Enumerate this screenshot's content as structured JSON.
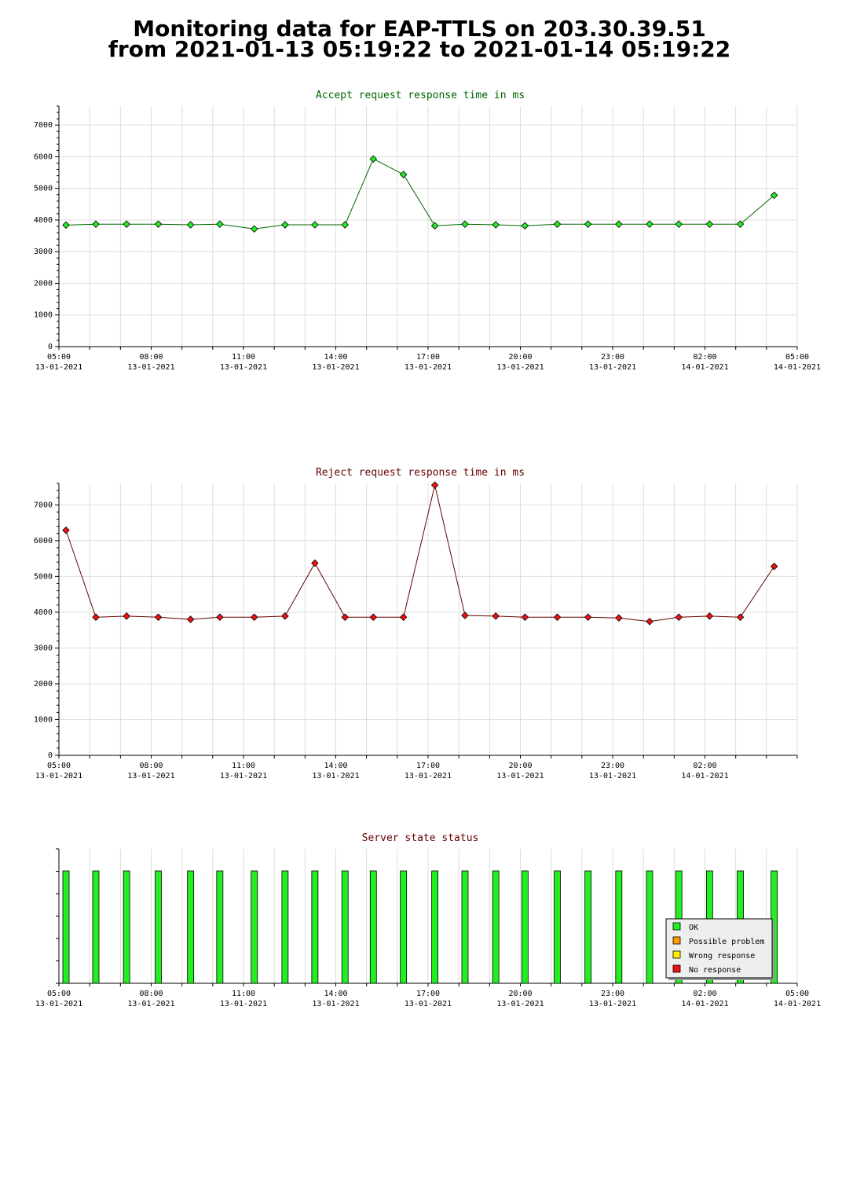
{
  "page": {
    "title_line1": "Monitoring data for EAP-TTLS on 203.30.39.51",
    "title_line2": "from 2021-01-13 05:19:22 to 2021-01-14 05:19:22"
  },
  "colors": {
    "accept_title": "#006600",
    "reject_title": "#660000",
    "state_title": "#660000",
    "accept_line": "#006600",
    "accept_marker": "#22ee22",
    "reject_line": "#660000",
    "reject_marker": "#ee1111",
    "ok": "#22ee22",
    "possible_problem": "#ff9900",
    "wrong_response": "#ffee00",
    "no_response": "#ee1111",
    "grid": "#dddddd"
  },
  "chart_data": [
    {
      "id": "accept",
      "type": "line",
      "title": "Accept request response time in ms",
      "ylim": [
        0,
        7600
      ],
      "yticks": [
        0,
        1000,
        2000,
        3000,
        4000,
        5000,
        6000,
        7000
      ],
      "xlim_hours": [
        5.0,
        29.0
      ],
      "xtick_labels": [
        {
          "time": "05:00",
          "date": "13-01-2021"
        },
        {
          "time": "08:00",
          "date": "13-01-2021"
        },
        {
          "time": "11:00",
          "date": "13-01-2021"
        },
        {
          "time": "14:00",
          "date": "13-01-2021"
        },
        {
          "time": "17:00",
          "date": "13-01-2021"
        },
        {
          "time": "20:00",
          "date": "13-01-2021"
        },
        {
          "time": "23:00",
          "date": "13-01-2021"
        },
        {
          "time": "02:00",
          "date": "14-01-2021"
        },
        {
          "time": "05:00",
          "date": "14-01-2021"
        }
      ],
      "grid": true,
      "series": [
        {
          "x_hours": [
            5.23,
            6.2,
            7.2,
            8.23,
            9.28,
            10.23,
            11.35,
            12.35,
            13.32,
            14.3,
            15.22,
            16.2,
            17.22,
            18.2,
            19.2,
            20.15,
            21.2,
            22.2,
            23.2,
            24.2,
            25.15,
            26.15,
            27.15,
            28.25
          ],
          "values": [
            3840,
            3870,
            3870,
            3870,
            3850,
            3870,
            3720,
            3850,
            3850,
            3850,
            5930,
            5440,
            3820,
            3870,
            3850,
            3820,
            3870,
            3870,
            3870,
            3870,
            3870,
            3870,
            3870,
            4780
          ]
        }
      ]
    },
    {
      "id": "reject",
      "type": "line",
      "title": "Reject request response time in ms",
      "ylim": [
        0,
        7600
      ],
      "yticks": [
        0,
        1000,
        2000,
        3000,
        4000,
        5000,
        6000,
        7000
      ],
      "xlim_hours": [
        5.0,
        29.0
      ],
      "xtick_labels": [
        {
          "time": "05:00",
          "date": "13-01-2021"
        },
        {
          "time": "08:00",
          "date": "13-01-2021"
        },
        {
          "time": "11:00",
          "date": "13-01-2021"
        },
        {
          "time": "14:00",
          "date": "13-01-2021"
        },
        {
          "time": "17:00",
          "date": "13-01-2021"
        },
        {
          "time": "20:00",
          "date": "13-01-2021"
        },
        {
          "time": "23:00",
          "date": "13-01-2021"
        },
        {
          "time": "02:00",
          "date": "14-01-2021"
        }
      ],
      "grid": true,
      "series": [
        {
          "x_hours": [
            5.23,
            6.2,
            7.2,
            8.23,
            9.28,
            10.23,
            11.35,
            12.35,
            13.32,
            14.3,
            15.22,
            16.2,
            17.22,
            18.2,
            19.2,
            20.15,
            21.2,
            22.2,
            23.2,
            24.2,
            25.15,
            26.15,
            27.15,
            28.25
          ],
          "values": [
            6290,
            3860,
            3890,
            3860,
            3800,
            3860,
            3860,
            3890,
            5370,
            3860,
            3860,
            3860,
            7550,
            3910,
            3890,
            3860,
            3860,
            3860,
            3840,
            3740,
            3860,
            3890,
            3860,
            5280
          ]
        }
      ]
    },
    {
      "id": "state",
      "type": "bar",
      "title": "Server state status",
      "xlim_hours": [
        5.0,
        29.0
      ],
      "xtick_labels": [
        {
          "time": "05:00",
          "date": "13-01-2021"
        },
        {
          "time": "08:00",
          "date": "13-01-2021"
        },
        {
          "time": "11:00",
          "date": "13-01-2021"
        },
        {
          "time": "14:00",
          "date": "13-01-2021"
        },
        {
          "time": "17:00",
          "date": "13-01-2021"
        },
        {
          "time": "20:00",
          "date": "13-01-2021"
        },
        {
          "time": "23:00",
          "date": "13-01-2021"
        },
        {
          "time": "02:00",
          "date": "14-01-2021"
        },
        {
          "time": "05:00",
          "date": "14-01-2021"
        }
      ],
      "x_hours": [
        5.23,
        6.2,
        7.2,
        8.23,
        9.28,
        10.23,
        11.35,
        12.35,
        13.32,
        14.3,
        15.22,
        16.2,
        17.22,
        18.2,
        19.2,
        20.15,
        21.2,
        22.2,
        23.2,
        24.2,
        25.15,
        26.15,
        27.15,
        28.25
      ],
      "states": [
        "ok",
        "ok",
        "ok",
        "ok",
        "ok",
        "ok",
        "ok",
        "ok",
        "ok",
        "ok",
        "ok",
        "ok",
        "ok",
        "ok",
        "ok",
        "ok",
        "ok",
        "ok",
        "ok",
        "ok",
        "ok",
        "ok",
        "ok",
        "ok"
      ],
      "legend": [
        {
          "key": "ok",
          "label": "OK"
        },
        {
          "key": "possible_problem",
          "label": "Possible problem"
        },
        {
          "key": "wrong_response",
          "label": "Wrong response"
        },
        {
          "key": "no_response",
          "label": "No response"
        }
      ],
      "legend_position": "bottom-right"
    }
  ]
}
